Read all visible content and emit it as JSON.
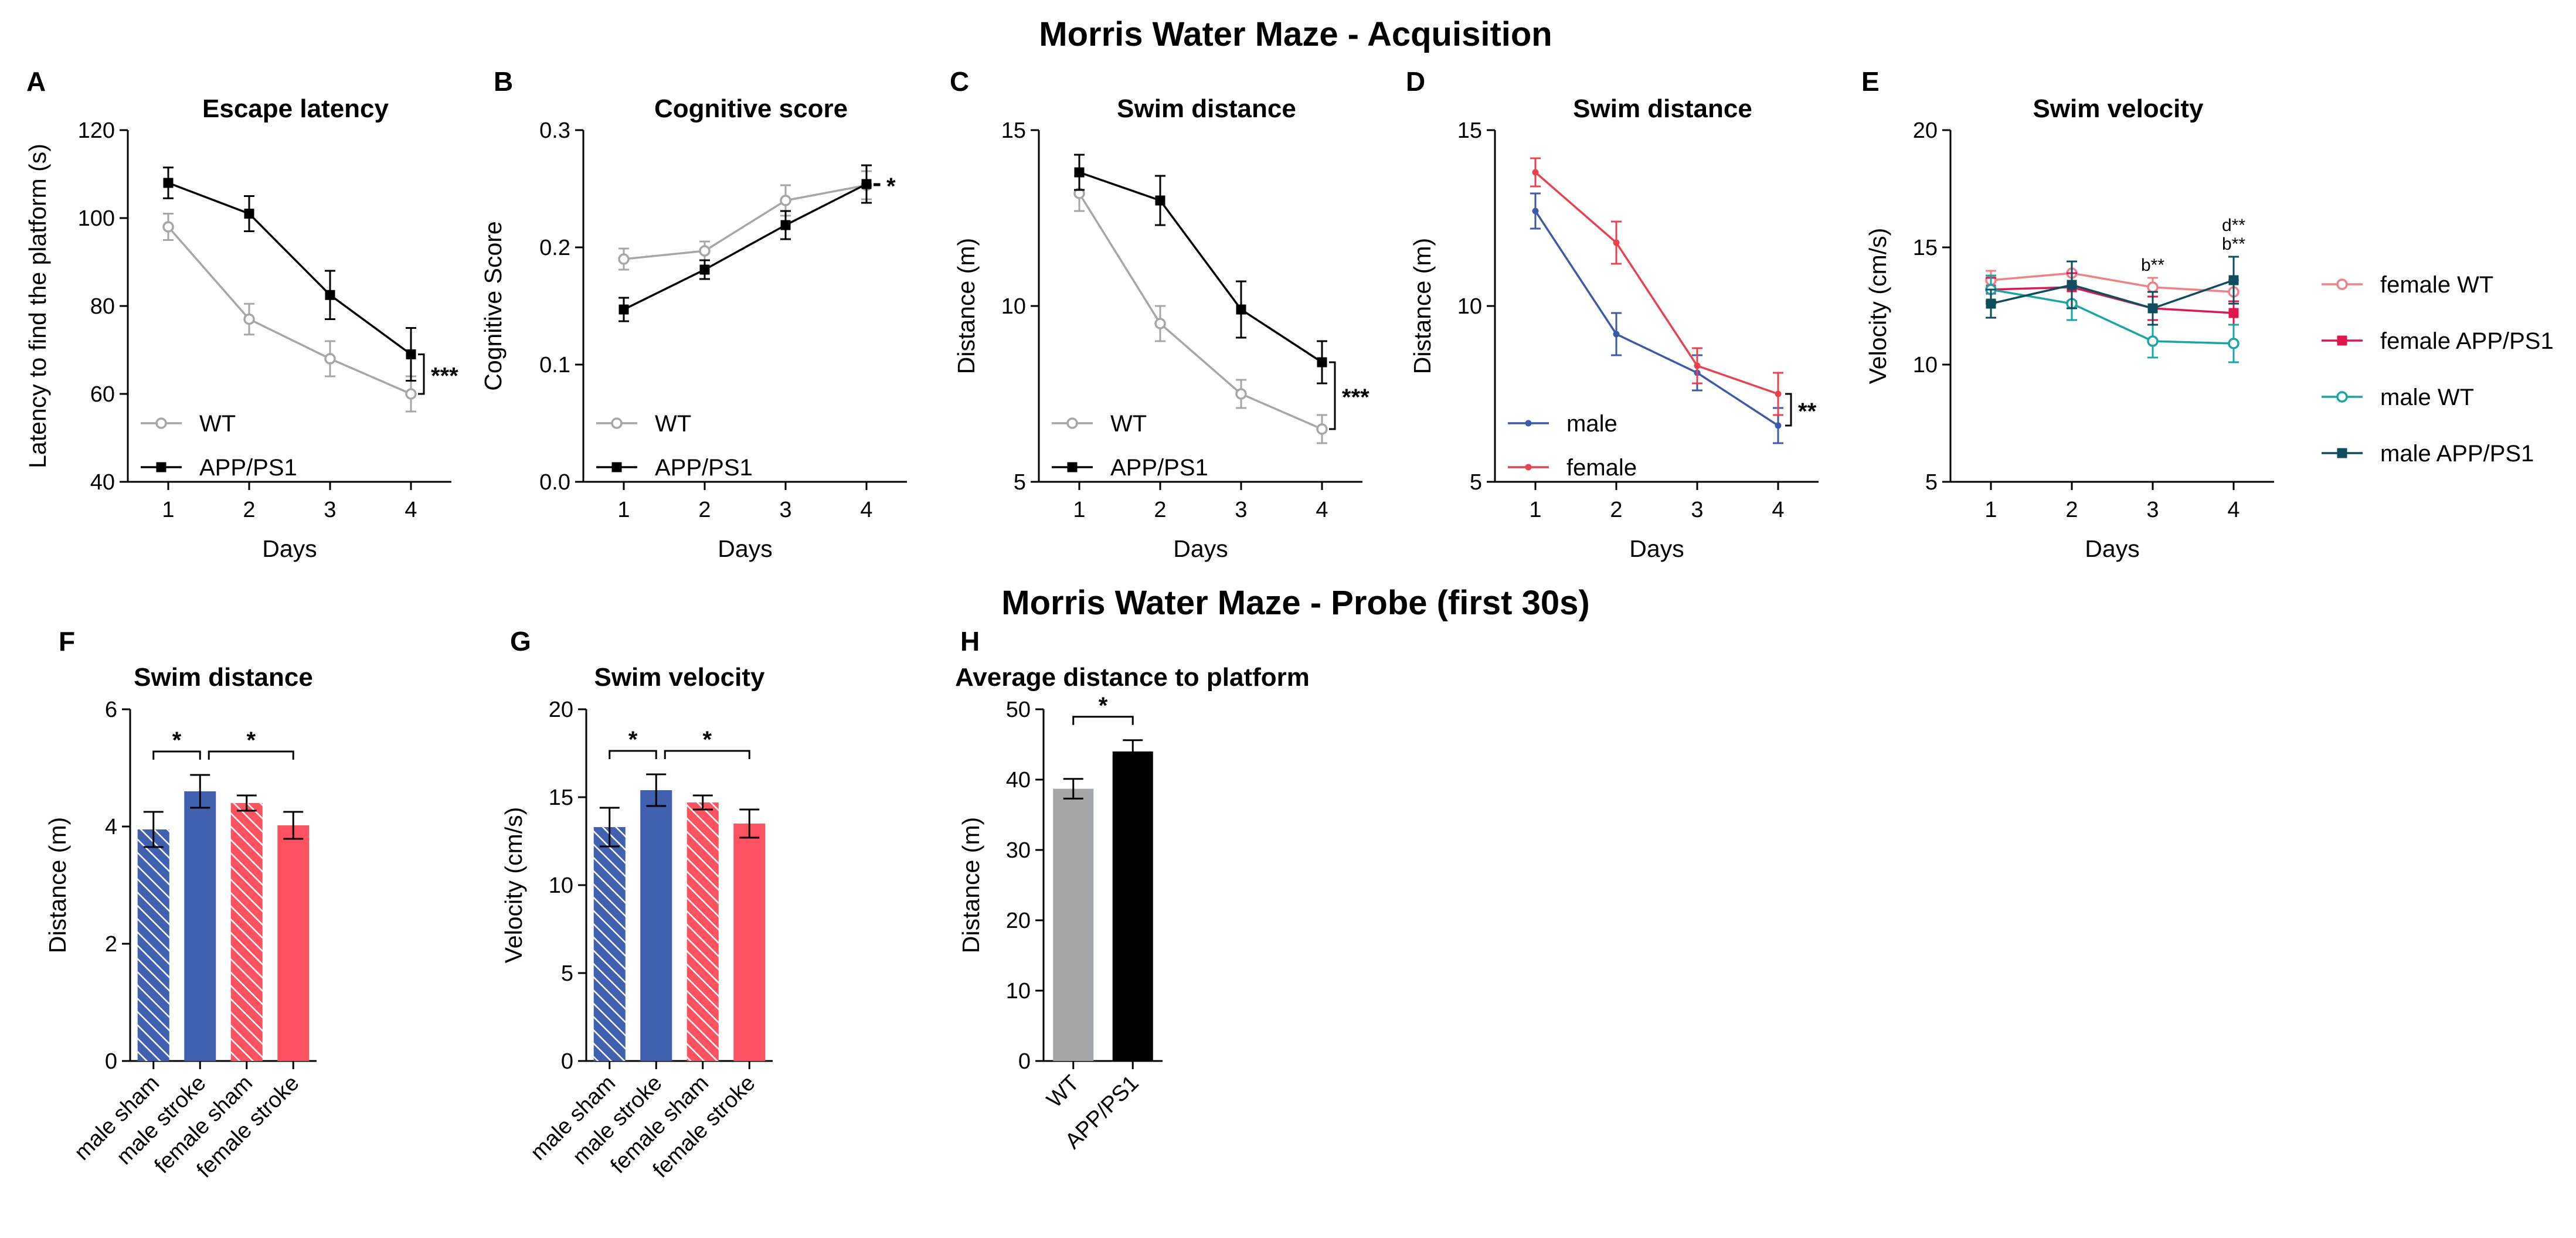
{
  "titles": {
    "acquisition": "Morris Water Maze - Acquisition",
    "probe": "Morris Water Maze - Probe (first 30s)"
  },
  "colors": {
    "wt": "#a6a6a6",
    "app": "#000000",
    "male_line": "#3d5aa8",
    "female_line": "#e8424f",
    "female_wt": "#f07f86",
    "female_app": "#e0174f",
    "male_wt": "#19a5a5",
    "male_app": "#0e4c60",
    "bar_male": "#4060b0",
    "bar_female": "#ff5260",
    "bar_wt": "#a3a7a9",
    "bar_app": "#000000"
  },
  "chart_data": [
    {
      "id": "A",
      "panel": "A",
      "type": "line",
      "title": "Escape latency",
      "xlabel": "Days",
      "ylabel": "Latency to find the platform (s)",
      "x": [
        1,
        2,
        3,
        4
      ],
      "xlim": [
        0.5,
        4.5
      ],
      "ylim": [
        40,
        120
      ],
      "yticks": [
        40,
        60,
        80,
        100,
        120
      ],
      "series": [
        {
          "name": "WT",
          "color_key": "wt",
          "marker": "open-circle",
          "values": [
            98,
            77,
            68,
            60
          ],
          "errors": [
            3,
            3.5,
            4,
            4
          ]
        },
        {
          "name": "APP/PS1",
          "color_key": "app",
          "marker": "filled-square",
          "values": [
            108,
            101,
            82.5,
            69
          ],
          "errors": [
            3.5,
            4,
            5.5,
            6
          ]
        }
      ],
      "legend": {
        "position": "bottom-left",
        "entries": [
          "WT",
          "APP/PS1"
        ]
      },
      "significance": "***"
    },
    {
      "id": "B",
      "panel": "B",
      "type": "line",
      "title": "Cognitive score",
      "xlabel": "Days",
      "ylabel": "Cognitive Score",
      "x": [
        1,
        2,
        3,
        4
      ],
      "xlim": [
        0.5,
        4.5
      ],
      "ylim": [
        0.0,
        0.3
      ],
      "yticks": [
        0.0,
        0.1,
        0.2,
        0.3
      ],
      "ytick_labels": [
        "0.0",
        "0.1",
        "0.2",
        "0.3"
      ],
      "series": [
        {
          "name": "WT",
          "color_key": "wt",
          "marker": "open-circle",
          "values": [
            0.19,
            0.197,
            0.24,
            0.253
          ],
          "errors": [
            0.009,
            0.008,
            0.013,
            0.012
          ]
        },
        {
          "name": "APP/PS1",
          "color_key": "app",
          "marker": "filled-square",
          "values": [
            0.147,
            0.181,
            0.219,
            0.254
          ],
          "errors": [
            0.01,
            0.008,
            0.012,
            0.016
          ]
        }
      ],
      "legend": {
        "position": "bottom-left",
        "entries": [
          "WT",
          "APP/PS1"
        ]
      },
      "significance": "*"
    },
    {
      "id": "C",
      "panel": "C",
      "type": "line",
      "title": "Swim distance",
      "xlabel": "Days",
      "ylabel": "Distance (m)",
      "x": [
        1,
        2,
        3,
        4
      ],
      "xlim": [
        0.5,
        4.5
      ],
      "ylim": [
        5,
        15
      ],
      "yticks": [
        5,
        10,
        15
      ],
      "series": [
        {
          "name": "WT",
          "color_key": "wt",
          "marker": "open-circle",
          "values": [
            13.2,
            9.5,
            7.5,
            6.5
          ],
          "errors": [
            0.5,
            0.5,
            0.4,
            0.4
          ]
        },
        {
          "name": "APP/PS1",
          "color_key": "app",
          "marker": "filled-square",
          "values": [
            13.8,
            13.0,
            9.9,
            8.4
          ],
          "errors": [
            0.5,
            0.7,
            0.8,
            0.6
          ]
        }
      ],
      "legend": {
        "position": "bottom-left",
        "entries": [
          "WT",
          "APP/PS1"
        ]
      },
      "significance": "***"
    },
    {
      "id": "D",
      "panel": "D",
      "type": "line",
      "title": "Swim distance",
      "xlabel": "Days",
      "ylabel": "Distance (m)",
      "x": [
        1,
        2,
        3,
        4
      ],
      "xlim": [
        0.5,
        4.5
      ],
      "ylim": [
        5,
        15
      ],
      "yticks": [
        5,
        10,
        15
      ],
      "series": [
        {
          "name": "male",
          "color_key": "male_line",
          "marker": "small-dot",
          "values": [
            12.7,
            9.2,
            8.1,
            6.6
          ],
          "errors": [
            0.5,
            0.6,
            0.5,
            0.5
          ]
        },
        {
          "name": "female",
          "color_key": "female_line",
          "marker": "small-dot",
          "values": [
            13.8,
            11.8,
            8.3,
            7.5
          ],
          "errors": [
            0.4,
            0.6,
            0.5,
            0.6
          ]
        }
      ],
      "legend": {
        "position": "bottom-left",
        "entries": [
          "male",
          "female"
        ]
      },
      "significance": "**"
    },
    {
      "id": "E",
      "panel": "E",
      "type": "line",
      "title": "Swim velocity",
      "xlabel": "Days",
      "ylabel": "Velocity (cm/s)",
      "x": [
        1,
        2,
        3,
        4
      ],
      "xlim": [
        0.5,
        4.5
      ],
      "ylim": [
        5,
        20
      ],
      "yticks": [
        5,
        10,
        15,
        20
      ],
      "series": [
        {
          "name": "female WT",
          "color_key": "female_wt",
          "marker": "open-circle",
          "values": [
            13.6,
            13.9,
            13.3,
            13.1
          ],
          "errors": [
            0.4,
            0.5,
            0.4,
            0.5
          ]
        },
        {
          "name": "female APP/PS1",
          "color_key": "female_app",
          "marker": "filled-square",
          "values": [
            13.2,
            13.3,
            12.4,
            12.2
          ],
          "errors": [
            0.5,
            0.6,
            0.5,
            0.5
          ]
        },
        {
          "name": "male WT",
          "color_key": "male_wt",
          "marker": "open-circle",
          "values": [
            13.2,
            12.6,
            11.0,
            10.9
          ],
          "errors": [
            0.6,
            0.7,
            0.7,
            0.8
          ]
        },
        {
          "name": "male APP/PS1",
          "color_key": "male_app",
          "marker": "filled-square",
          "values": [
            12.6,
            13.4,
            12.4,
            13.6
          ],
          "errors": [
            0.6,
            1.0,
            0.7,
            1.0
          ]
        }
      ],
      "legend": {
        "position": "right",
        "entries": [
          "female WT",
          "female APP/PS1",
          "male WT",
          "male APP/PS1"
        ]
      },
      "annotations": [
        {
          "x": 3,
          "text": "b**"
        },
        {
          "x": 4,
          "text": "d**"
        },
        {
          "x": 4,
          "text": "b**"
        }
      ]
    },
    {
      "id": "F",
      "panel": "F",
      "type": "bar",
      "title": "Swim distance",
      "ylabel": "Distance (m)",
      "categories": [
        "male sham",
        "male stroke",
        "female sham",
        "female stroke"
      ],
      "values": [
        3.95,
        4.6,
        4.4,
        4.02
      ],
      "errors": [
        0.3,
        0.28,
        0.13,
        0.23
      ],
      "bar_color_keys": [
        "bar_male",
        "bar_male",
        "bar_female",
        "bar_female"
      ],
      "hatched": [
        true,
        false,
        true,
        false
      ],
      "ylim": [
        0,
        6
      ],
      "yticks": [
        0,
        2,
        4,
        6
      ],
      "significance": [
        {
          "from": 0,
          "to": 1,
          "label": "*"
        },
        {
          "from": 1,
          "to": 3,
          "label": "*"
        }
      ]
    },
    {
      "id": "G",
      "panel": "G",
      "type": "bar",
      "title": "Swim velocity",
      "ylabel": "Velocity (cm/s)",
      "categories": [
        "male sham",
        "male stroke",
        "female sham",
        "female stroke"
      ],
      "values": [
        13.3,
        15.4,
        14.7,
        13.5
      ],
      "errors": [
        1.1,
        0.9,
        0.4,
        0.8
      ],
      "bar_color_keys": [
        "bar_male",
        "bar_male",
        "bar_female",
        "bar_female"
      ],
      "hatched": [
        true,
        false,
        true,
        false
      ],
      "ylim": [
        0,
        20
      ],
      "yticks": [
        0,
        5,
        10,
        15,
        20
      ],
      "significance": [
        {
          "from": 0,
          "to": 1,
          "label": "*"
        },
        {
          "from": 1,
          "to": 3,
          "label": "*"
        }
      ]
    },
    {
      "id": "H",
      "panel": "H",
      "type": "bar",
      "title": "Average distance to platform",
      "ylabel": "Distance (m)",
      "categories": [
        "WT",
        "APP/PS1"
      ],
      "values": [
        38.7,
        44.0
      ],
      "errors": [
        1.4,
        1.6
      ],
      "bar_color_keys": [
        "bar_wt",
        "bar_app"
      ],
      "hatched": [
        false,
        false
      ],
      "ylim": [
        0,
        50
      ],
      "yticks": [
        0,
        10,
        20,
        30,
        40,
        50
      ],
      "significance": [
        {
          "from": 0,
          "to": 1,
          "label": "*"
        }
      ]
    }
  ]
}
